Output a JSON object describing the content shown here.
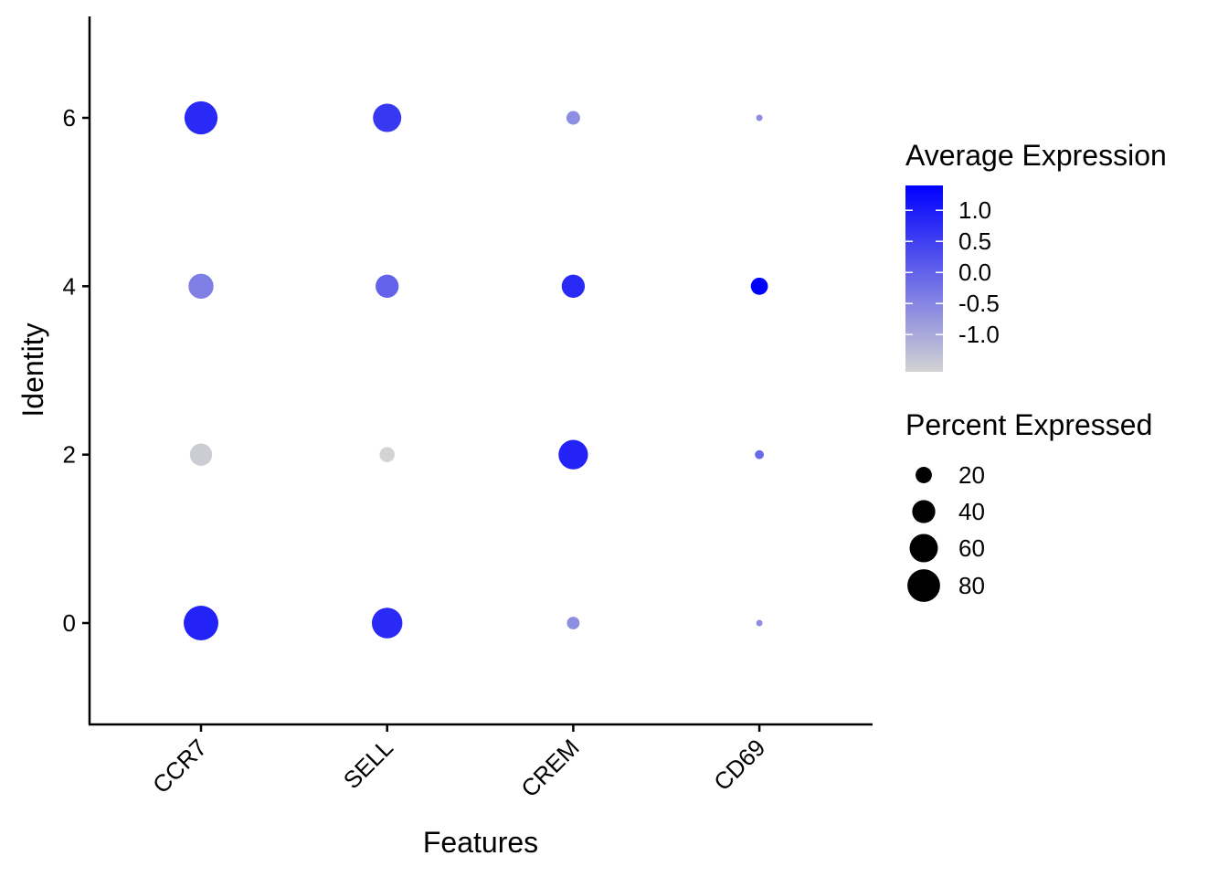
{
  "chart_data": {
    "type": "dotplot",
    "xlabel": "Features",
    "ylabel": "Identity",
    "features": [
      "CCR7",
      "SELL",
      "CREM",
      "CD69"
    ],
    "y_ticks": [
      "0",
      "2",
      "4",
      "6"
    ],
    "ylim": [
      -1.2,
      7.2
    ],
    "points": [
      {
        "identity": 6,
        "feature": "CCR7",
        "percent": 82,
        "avg_exp": 0.8
      },
      {
        "identity": 6,
        "feature": "SELL",
        "percent": 60,
        "avg_exp": 0.6
      },
      {
        "identity": 6,
        "feature": "CREM",
        "percent": 14,
        "avg_exp": -0.6
      },
      {
        "identity": 6,
        "feature": "CD69",
        "percent": 3,
        "avg_exp": -0.6
      },
      {
        "identity": 4,
        "feature": "CCR7",
        "percent": 47,
        "avg_exp": -0.4
      },
      {
        "identity": 4,
        "feature": "SELL",
        "percent": 40,
        "avg_exp": 0.0
      },
      {
        "identity": 4,
        "feature": "CREM",
        "percent": 40,
        "avg_exp": 0.8
      },
      {
        "identity": 4,
        "feature": "CD69",
        "percent": 22,
        "avg_exp": 1.4
      },
      {
        "identity": 2,
        "feature": "CCR7",
        "percent": 37,
        "avg_exp": -1.5
      },
      {
        "identity": 2,
        "feature": "SELL",
        "percent": 17,
        "avg_exp": -1.6
      },
      {
        "identity": 2,
        "feature": "CREM",
        "percent": 65,
        "avg_exp": 0.9
      },
      {
        "identity": 2,
        "feature": "CD69",
        "percent": 6,
        "avg_exp": -0.1
      },
      {
        "identity": 0,
        "feature": "CCR7",
        "percent": 90,
        "avg_exp": 0.9
      },
      {
        "identity": 0,
        "feature": "SELL",
        "percent": 70,
        "avg_exp": 0.8
      },
      {
        "identity": 0,
        "feature": "CREM",
        "percent": 12,
        "avg_exp": -0.6
      },
      {
        "identity": 0,
        "feature": "CD69",
        "percent": 3,
        "avg_exp": -0.6
      }
    ],
    "color_legend": {
      "title": "Average Expression",
      "ticks": [
        "1.0",
        "0.5",
        "0.0",
        "-0.5",
        "-1.0"
      ],
      "tick_values": [
        1.0,
        0.5,
        0.0,
        -0.5,
        -1.0
      ],
      "range": [
        -1.6,
        1.4
      ],
      "low_color": "#D3D3D3",
      "high_color": "#0000FF"
    },
    "size_legend": {
      "title": "Percent Expressed",
      "labels": [
        "20",
        "40",
        "60",
        "80"
      ],
      "values": [
        20,
        40,
        60,
        80
      ]
    },
    "grid": false
  }
}
